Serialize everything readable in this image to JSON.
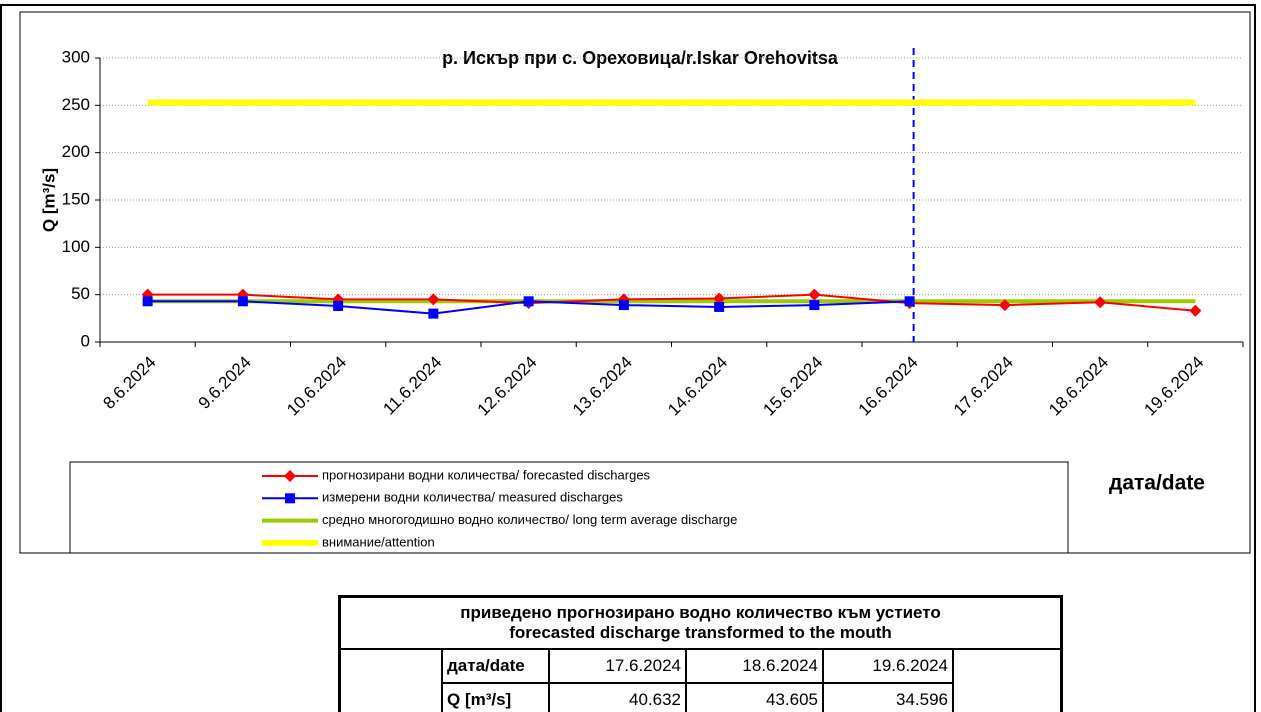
{
  "chart_data": {
    "type": "line",
    "title": "р. Искър при с. Ореховица/r.Iskar Orehovitsa",
    "y_label": "Q [m³/s]",
    "x_label": "дата/date",
    "categories": [
      "8.6.2024",
      "9.6.2024",
      "10.6.2024",
      "11.6.2024",
      "12.6.2024",
      "13.6.2024",
      "14.6.2024",
      "15.6.2024",
      "16.6.2024",
      "17.6.2024",
      "18.6.2024",
      "19.6.2024"
    ],
    "series": [
      {
        "name": "прогнозирани водни количества/ forecasted discharges",
        "color": "#ff0000",
        "marker": "diamond",
        "values": [
          50,
          50,
          45,
          45,
          41,
          45,
          46,
          50,
          41,
          39,
          42,
          33
        ]
      },
      {
        "name": "измерени водни количества/ measured discharges",
        "color": "#0000ff",
        "marker": "square",
        "values": [
          43,
          43,
          38,
          30,
          43,
          39,
          37,
          39,
          43,
          null,
          null,
          null
        ]
      },
      {
        "name": "средно многогодишно водно количество/ long term average discharge",
        "color": "#99cc00",
        "values": [
          43,
          43,
          43,
          43,
          43,
          43,
          43,
          43,
          43,
          43,
          43,
          43
        ]
      },
      {
        "name": "внимание/attention",
        "color": "#ffff00",
        "values": [
          253,
          253,
          253,
          253,
          253,
          253,
          253,
          253,
          253,
          253,
          253,
          253
        ]
      }
    ],
    "ylim": [
      0,
      300
    ],
    "yticks": [
      0,
      50,
      100,
      150,
      200,
      250,
      300
    ],
    "grid": true
  },
  "table": {
    "title": [
      "приведено прогнозирано водно количество към устието",
      "forecasted discharge transformed to the mouth"
    ],
    "rows": [
      [
        "дата/date",
        "17.6.2024",
        "18.6.2024",
        "19.6.2024"
      ],
      [
        "Q [m³/s]",
        40.632,
        43.605,
        34.596
      ]
    ]
  }
}
